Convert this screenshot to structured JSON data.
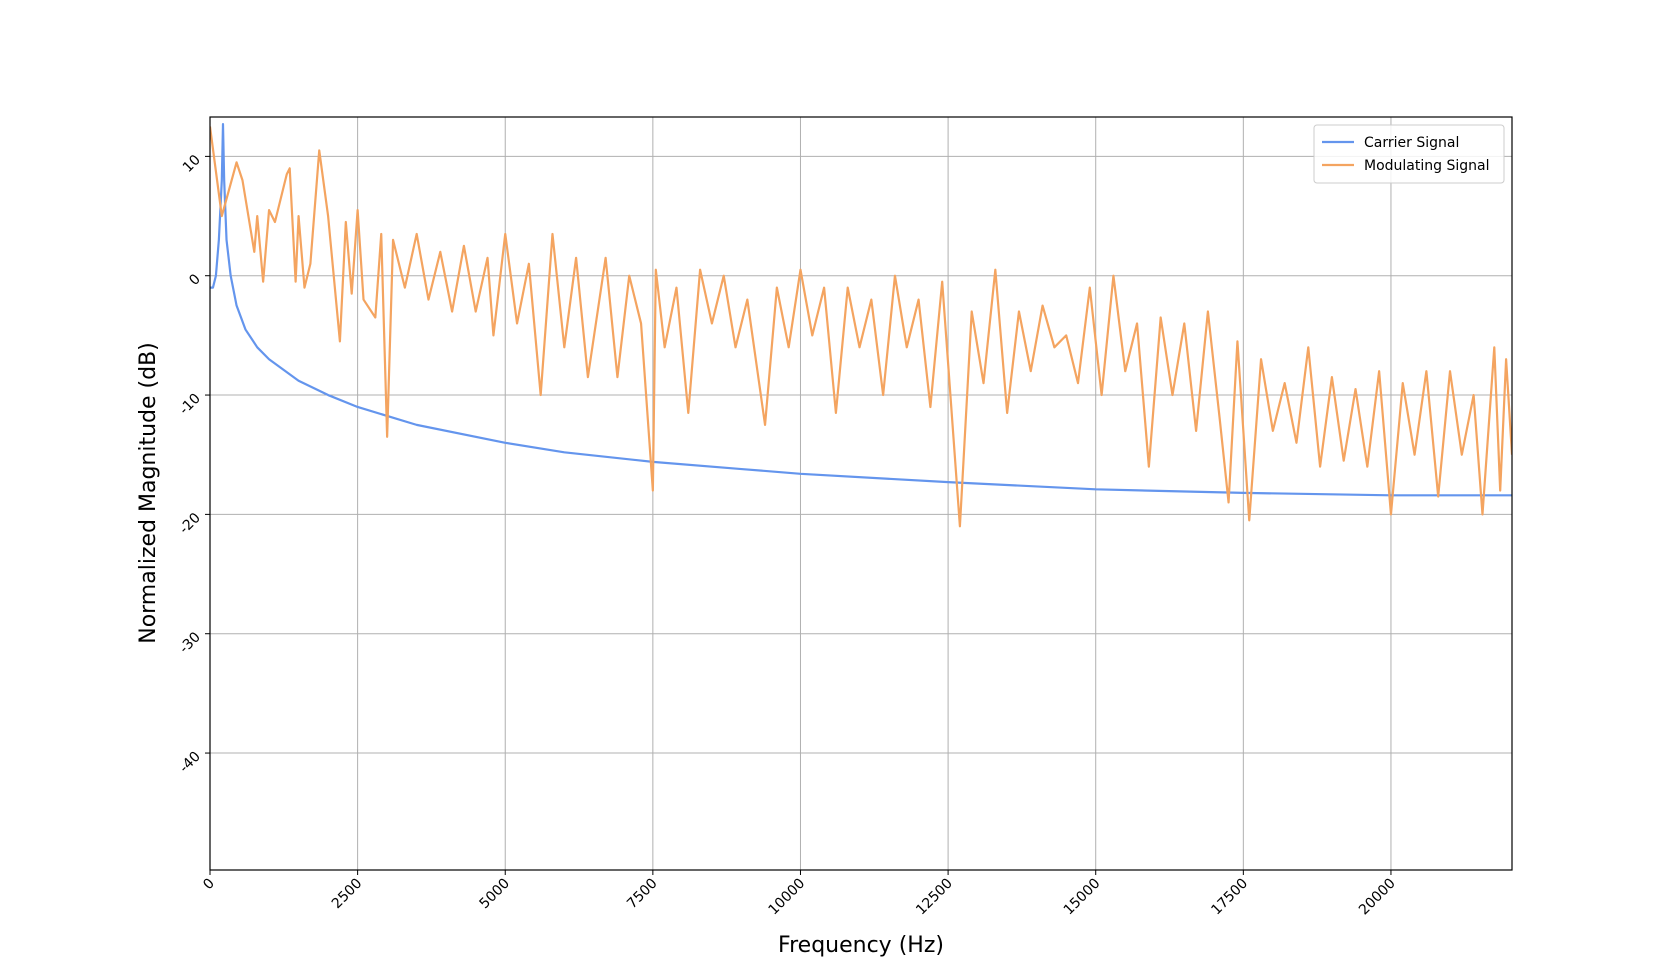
{
  "chart_data": {
    "type": "line",
    "xlabel": "Frequency (Hz)",
    "ylabel": "Normalized Magnitude (dB)",
    "xlim": [
      0,
      22050
    ],
    "ylim": [
      -49.8,
      13.3
    ],
    "xticks": [
      0,
      2500,
      5000,
      7500,
      10000,
      12500,
      15000,
      17500,
      20000
    ],
    "yticks": [
      -40,
      -30,
      -20,
      -10,
      0,
      10
    ],
    "grid": true,
    "legend": "upper right",
    "series": [
      {
        "name": "Carrier Signal",
        "color": "#6495ed",
        "x": [
          0,
          50,
          100,
          150,
          200,
          220,
          240,
          280,
          350,
          450,
          600,
          800,
          1000,
          1500,
          2000,
          2500,
          3500,
          5000,
          6000,
          7500,
          9000,
          10000,
          12500,
          15000,
          17500,
          20000,
          22050
        ],
        "values": [
          -1,
          -1,
          0,
          3,
          8,
          12.7,
          8,
          3,
          0,
          -2.5,
          -4.5,
          -6,
          -7,
          -8.8,
          -10,
          -11,
          -12.5,
          -14,
          -14.8,
          -15.6,
          -16.2,
          -16.6,
          -17.3,
          -17.9,
          -18.2,
          -18.4,
          -18.4
        ]
      },
      {
        "name": "Modulating Signal",
        "color": "#f4a460",
        "x": [
          0,
          200,
          450,
          550,
          750,
          800,
          900,
          1000,
          1100,
          1300,
          1350,
          1450,
          1500,
          1600,
          1700,
          1850,
          2000,
          2200,
          2300,
          2400,
          2500,
          2600,
          2800,
          2900,
          3000,
          3100,
          3300,
          3500,
          3700,
          3900,
          4100,
          4300,
          4500,
          4700,
          4800,
          5000,
          5200,
          5400,
          5600,
          5800,
          6000,
          6200,
          6400,
          6700,
          6900,
          7100,
          7300,
          7500,
          7550,
          7700,
          7900,
          8100,
          8300,
          8500,
          8700,
          8900,
          9100,
          9400,
          9600,
          9800,
          10000,
          10200,
          10400,
          10600,
          10800,
          11000,
          11200,
          11400,
          11600,
          11800,
          12000,
          12200,
          12400,
          12700,
          12900,
          13100,
          13300,
          13500,
          13700,
          13900,
          14100,
          14300,
          14500,
          14700,
          14900,
          15100,
          15300,
          15500,
          15700,
          15900,
          16100,
          16300,
          16500,
          16700,
          16900,
          17100,
          17250,
          17400,
          17600,
          17800,
          18000,
          18200,
          18400,
          18600,
          18800,
          19000,
          19200,
          19400,
          19600,
          19800,
          20000,
          20200,
          20400,
          20600,
          20800,
          21000,
          21200,
          21400,
          21550,
          21750,
          21850,
          21950,
          22050
        ],
        "values": [
          12.5,
          5,
          9.5,
          8,
          2,
          5,
          -0.5,
          5.5,
          4.5,
          8.5,
          9,
          -0.5,
          5,
          -1,
          1,
          10.5,
          5,
          -5.5,
          4.5,
          -1.5,
          5.5,
          -2,
          -3.5,
          3.5,
          -13.5,
          3,
          -1,
          3.5,
          -2,
          2,
          -3,
          2.5,
          -3,
          1.5,
          -5,
          3.5,
          -4,
          1,
          -10,
          3.5,
          -6,
          1.5,
          -8.5,
          1.5,
          -8.5,
          0,
          -4,
          -18,
          0.5,
          -6,
          -1,
          -11.5,
          0.5,
          -4,
          0,
          -6,
          -2,
          -12.5,
          -1,
          -6,
          0.5,
          -5,
          -1,
          -11.5,
          -1,
          -6,
          -2,
          -10,
          0,
          -6,
          -2,
          -11,
          -0.5,
          -21,
          -3,
          -9,
          0.5,
          -11.5,
          -3,
          -8,
          -2.5,
          -6,
          -5,
          -9,
          -1,
          -10,
          0,
          -8,
          -4,
          -16,
          -3.5,
          -10,
          -4,
          -13,
          -3,
          -12,
          -19,
          -5.5,
          -20.5,
          -7,
          -13,
          -9,
          -14,
          -6,
          -16,
          -8.5,
          -15.5,
          -9.5,
          -16,
          -8,
          -20,
          -9,
          -15,
          -8,
          -18.5,
          -8,
          -15,
          -10,
          -20,
          -6,
          -18,
          -7,
          -15
        ]
      }
    ]
  }
}
